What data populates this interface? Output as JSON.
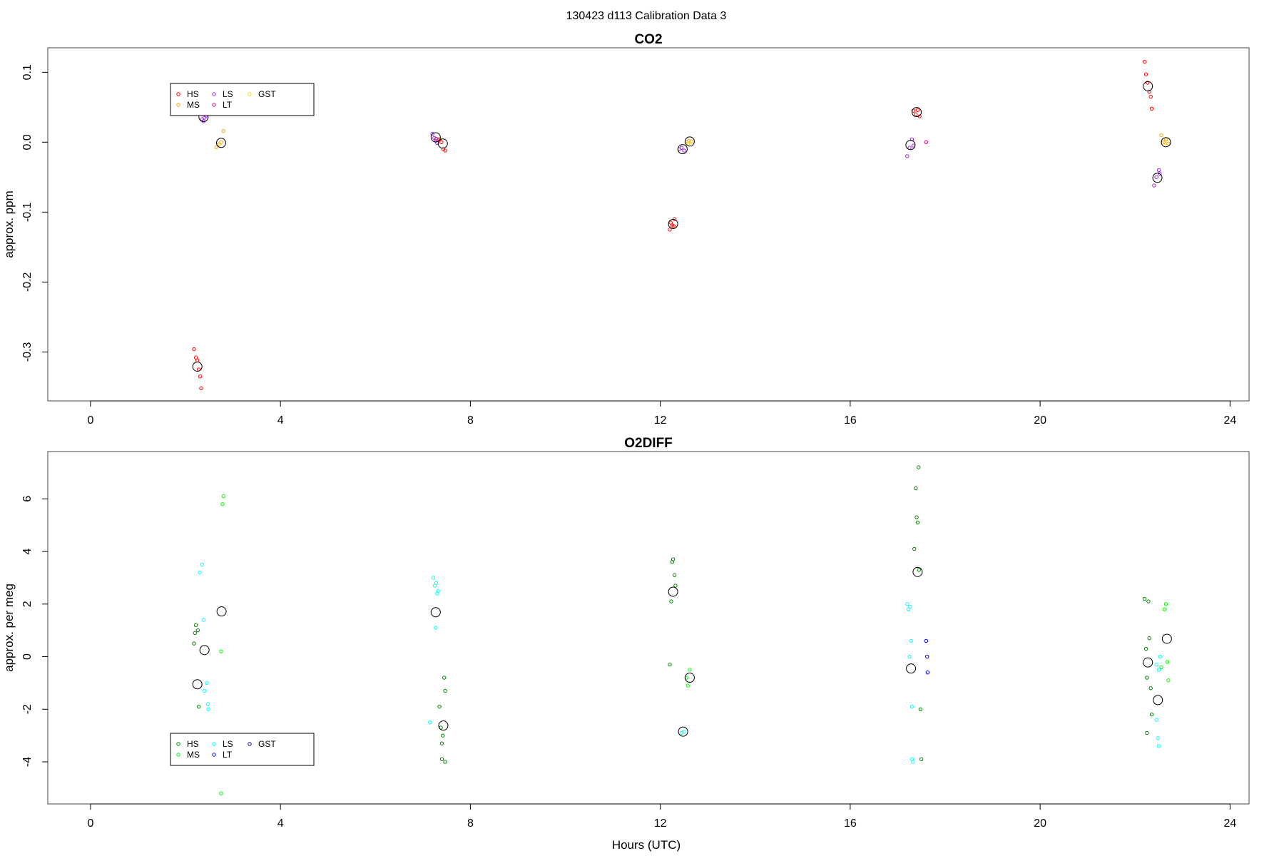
{
  "figure": {
    "title": "130423   d113   Calibration Data 3",
    "xlabel": "Hours (UTC)"
  },
  "chart_data": [
    {
      "type": "scatter",
      "title": "CO2",
      "ylabel": "approx. ppm",
      "xlim": [
        -0.9,
        24.4
      ],
      "ylim": [
        -0.37,
        0.135
      ],
      "xticks": [
        0,
        4,
        8,
        12,
        16,
        20,
        24
      ],
      "yticks": [
        -0.3,
        -0.2,
        -0.1,
        0.0,
        0.1
      ],
      "ytick_labels": [
        "-0.3",
        "-0.2",
        "-0.1",
        "0.0",
        "0.1"
      ],
      "legend": {
        "placement": "top-left",
        "entries": [
          {
            "name": "HS",
            "color": "#ff0000"
          },
          {
            "name": "MS",
            "color": "#ffa500"
          },
          {
            "name": "LS",
            "color": "#a020f0"
          },
          {
            "name": "LT",
            "color": "#d0006f"
          },
          {
            "name": "GST",
            "color": "#ffd700"
          }
        ]
      },
      "series": [
        {
          "name": "HS",
          "color": "#ff0000",
          "points": [
            [
              2.18,
              -0.296
            ],
            [
              2.22,
              -0.308
            ],
            [
              2.25,
              -0.312
            ],
            [
              2.28,
              -0.325
            ],
            [
              2.31,
              -0.335
            ],
            [
              2.33,
              -0.352
            ],
            [
              7.28,
              0.005
            ],
            [
              7.35,
              0.004
            ],
            [
              7.39,
              0.0
            ],
            [
              7.43,
              -0.01
            ],
            [
              7.47,
              -0.012
            ],
            [
              12.22,
              -0.115
            ],
            [
              12.25,
              -0.119
            ],
            [
              12.28,
              -0.12
            ],
            [
              12.3,
              -0.11
            ],
            [
              12.2,
              -0.125
            ],
            [
              17.33,
              0.045
            ],
            [
              17.38,
              0.04
            ],
            [
              17.42,
              0.046
            ],
            [
              17.46,
              0.037
            ],
            [
              22.2,
              0.115
            ],
            [
              22.23,
              0.097
            ],
            [
              22.26,
              0.085
            ],
            [
              22.3,
              0.072
            ],
            [
              22.33,
              0.065
            ],
            [
              22.35,
              0.048
            ]
          ]
        },
        {
          "name": "MS",
          "color": "#ffa500",
          "points": [
            [
              2.65,
              -0.007
            ],
            [
              2.7,
              -0.003
            ],
            [
              2.75,
              0.0
            ],
            [
              2.8,
              0.016
            ],
            [
              12.55,
              0.0
            ],
            [
              12.6,
              0.002
            ],
            [
              12.65,
              0.001
            ],
            [
              22.55,
              0.01
            ],
            [
              22.6,
              0.0
            ],
            [
              22.65,
              0.004
            ],
            [
              22.7,
              -0.002
            ]
          ]
        },
        {
          "name": "LS",
          "color": "#a020f0",
          "points": [
            [
              2.35,
              0.033
            ],
            [
              2.38,
              0.03
            ],
            [
              2.4,
              0.035
            ],
            [
              2.43,
              0.038
            ],
            [
              7.2,
              0.012
            ],
            [
              7.24,
              0.006
            ],
            [
              7.27,
              0.002
            ],
            [
              7.3,
              -0.001
            ],
            [
              12.4,
              -0.01
            ],
            [
              12.45,
              -0.008
            ],
            [
              12.5,
              -0.012
            ],
            [
              17.2,
              -0.02
            ],
            [
              17.25,
              -0.008
            ],
            [
              17.3,
              0.004
            ],
            [
              17.33,
              -0.005
            ],
            [
              22.4,
              -0.062
            ],
            [
              22.45,
              -0.05
            ],
            [
              22.5,
              -0.04
            ],
            [
              22.52,
              -0.045
            ]
          ]
        },
        {
          "name": "LT",
          "color": "#d0006f",
          "points": [
            [
              17.6,
              0.0
            ]
          ]
        },
        {
          "name": "GST",
          "color": "#ffd700",
          "points": [
            [
              12.58,
              -0.002
            ],
            [
              22.63,
              -0.001
            ]
          ]
        }
      ],
      "means": [
        [
          2.25,
          -0.321
        ],
        [
          2.38,
          0.036
        ],
        [
          2.75,
          -0.001
        ],
        [
          7.27,
          0.007
        ],
        [
          7.42,
          -0.002
        ],
        [
          12.27,
          -0.117
        ],
        [
          12.47,
          -0.01
        ],
        [
          12.62,
          0.001
        ],
        [
          17.27,
          -0.004
        ],
        [
          17.4,
          0.043
        ],
        [
          22.27,
          0.08
        ],
        [
          22.47,
          -0.051
        ],
        [
          22.65,
          0.0
        ]
      ]
    },
    {
      "type": "scatter",
      "title": "O2DIFF",
      "ylabel": "approx. per meg",
      "xlim": [
        -0.9,
        24.4
      ],
      "ylim": [
        -5.6,
        7.8
      ],
      "xticks": [
        0,
        4,
        8,
        12,
        16,
        20,
        24
      ],
      "yticks": [
        -4,
        -2,
        0,
        2,
        4,
        6
      ],
      "ytick_labels": [
        "-4",
        "-2",
        "0",
        "2",
        "4",
        "6"
      ],
      "legend": {
        "placement": "bottom-left",
        "entries": [
          {
            "name": "HS",
            "color": "#008000"
          },
          {
            "name": "MS",
            "color": "#00ff00"
          },
          {
            "name": "LS",
            "color": "#00ffff"
          },
          {
            "name": "LT",
            "color": "#0000ff"
          },
          {
            "name": "GST",
            "color": "#00008b"
          }
        ]
      },
      "series": [
        {
          "name": "HS",
          "color": "#008000",
          "points": [
            [
              2.18,
              0.5
            ],
            [
              2.2,
              0.9
            ],
            [
              2.22,
              1.2
            ],
            [
              2.26,
              1.0
            ],
            [
              2.28,
              -1.9
            ],
            [
              7.35,
              -1.9
            ],
            [
              7.38,
              -2.7
            ],
            [
              7.4,
              -3.3
            ],
            [
              7.42,
              -3.0
            ],
            [
              7.45,
              -0.8
            ],
            [
              7.47,
              -1.3
            ],
            [
              7.4,
              -3.9
            ],
            [
              7.47,
              -4.0
            ],
            [
              12.2,
              -0.3
            ],
            [
              12.23,
              2.1
            ],
            [
              12.25,
              3.6
            ],
            [
              12.27,
              3.7
            ],
            [
              12.3,
              3.1
            ],
            [
              12.32,
              2.7
            ],
            [
              17.35,
              4.1
            ],
            [
              17.38,
              6.4
            ],
            [
              17.4,
              5.3
            ],
            [
              17.42,
              5.1
            ],
            [
              17.44,
              7.2
            ],
            [
              17.45,
              3.3
            ],
            [
              17.48,
              -2.0
            ],
            [
              17.5,
              -3.9
            ],
            [
              22.2,
              2.2
            ],
            [
              22.23,
              0.3
            ],
            [
              22.25,
              -0.8
            ],
            [
              22.28,
              2.1
            ],
            [
              22.3,
              0.7
            ],
            [
              22.33,
              -1.2
            ],
            [
              22.35,
              -2.2
            ],
            [
              22.25,
              -2.9
            ]
          ]
        },
        {
          "name": "MS",
          "color": "#00ff00",
          "points": [
            [
              2.75,
              0.2
            ],
            [
              2.78,
              5.8
            ],
            [
              2.8,
              6.1
            ],
            [
              2.75,
              -5.2
            ],
            [
              12.55,
              -0.8
            ],
            [
              12.58,
              -1.1
            ],
            [
              12.62,
              -0.5
            ],
            [
              22.55,
              -0.4
            ],
            [
              22.62,
              1.8
            ],
            [
              22.65,
              2.0
            ],
            [
              22.68,
              -0.2
            ],
            [
              22.7,
              -0.9
            ]
          ]
        },
        {
          "name": "LS",
          "color": "#00ffff",
          "points": [
            [
              2.3,
              3.2
            ],
            [
              2.35,
              3.5
            ],
            [
              2.38,
              1.4
            ],
            [
              2.4,
              -1.3
            ],
            [
              2.45,
              -1.0
            ],
            [
              2.47,
              -1.8
            ],
            [
              2.48,
              -2.0
            ],
            [
              7.15,
              -2.5
            ],
            [
              7.22,
              3.0
            ],
            [
              7.25,
              2.7
            ],
            [
              7.28,
              2.8
            ],
            [
              7.3,
              2.4
            ],
            [
              7.32,
              2.5
            ],
            [
              7.27,
              1.1
            ],
            [
              12.45,
              -2.9
            ],
            [
              12.5,
              -2.85
            ],
            [
              17.2,
              2.0
            ],
            [
              17.23,
              1.8
            ],
            [
              17.26,
              1.9
            ],
            [
              17.28,
              0.6
            ],
            [
              17.25,
              0.0
            ],
            [
              17.3,
              -1.9
            ],
            [
              17.3,
              -3.9
            ],
            [
              17.32,
              -4.0
            ],
            [
              22.45,
              -0.3
            ],
            [
              22.5,
              -0.5
            ],
            [
              22.53,
              0.0
            ],
            [
              22.45,
              -2.4
            ],
            [
              22.48,
              -3.1
            ],
            [
              22.5,
              -3.4
            ]
          ]
        },
        {
          "name": "LT",
          "color": "#0000ff",
          "points": [
            [
              17.6,
              0.6
            ],
            [
              17.62,
              0.0
            ],
            [
              17.63,
              -0.6
            ]
          ]
        },
        {
          "name": "GST",
          "color": "#00008b",
          "points": []
        }
      ],
      "means": [
        [
          2.25,
          -1.05
        ],
        [
          2.4,
          0.25
        ],
        [
          2.76,
          1.72
        ],
        [
          7.27,
          1.69
        ],
        [
          7.43,
          -2.62
        ],
        [
          12.27,
          2.47
        ],
        [
          12.48,
          -2.85
        ],
        [
          12.62,
          -0.8
        ],
        [
          17.28,
          -0.45
        ],
        [
          17.42,
          3.22
        ],
        [
          22.27,
          -0.22
        ],
        [
          22.48,
          -1.65
        ],
        [
          22.67,
          0.68
        ]
      ]
    }
  ]
}
